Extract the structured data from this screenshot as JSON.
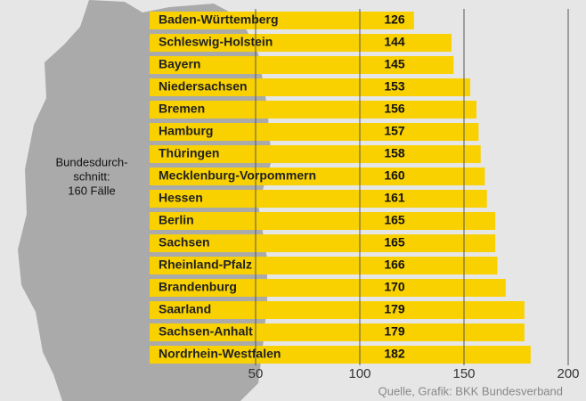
{
  "chart_data": {
    "type": "bar",
    "orientation": "horizontal",
    "categories": [
      "Baden-Württemberg",
      "Schleswig-Holstein",
      "Bayern",
      "Niedersachsen",
      "Bremen",
      "Hamburg",
      "Thüringen",
      "Mecklenburg-Vorpommern",
      "Hessen",
      "Berlin",
      "Sachsen",
      "Rheinland-Pfalz",
      "Brandenburg",
      "Saarland",
      "Sachsen-Anhalt",
      "Nordrhein-Westfalen"
    ],
    "values": [
      126,
      144,
      145,
      153,
      156,
      157,
      158,
      160,
      161,
      165,
      165,
      166,
      170,
      179,
      179,
      182
    ],
    "color": "#f9d100",
    "xlim": [
      0,
      200
    ],
    "xticks": [
      50,
      100,
      150,
      200
    ],
    "grid": true,
    "annotation": [
      "Bundesdurch-",
      "schnitt:",
      "160 Fälle"
    ],
    "source": "Quelle, Grafik: BKK Bundesverband"
  }
}
